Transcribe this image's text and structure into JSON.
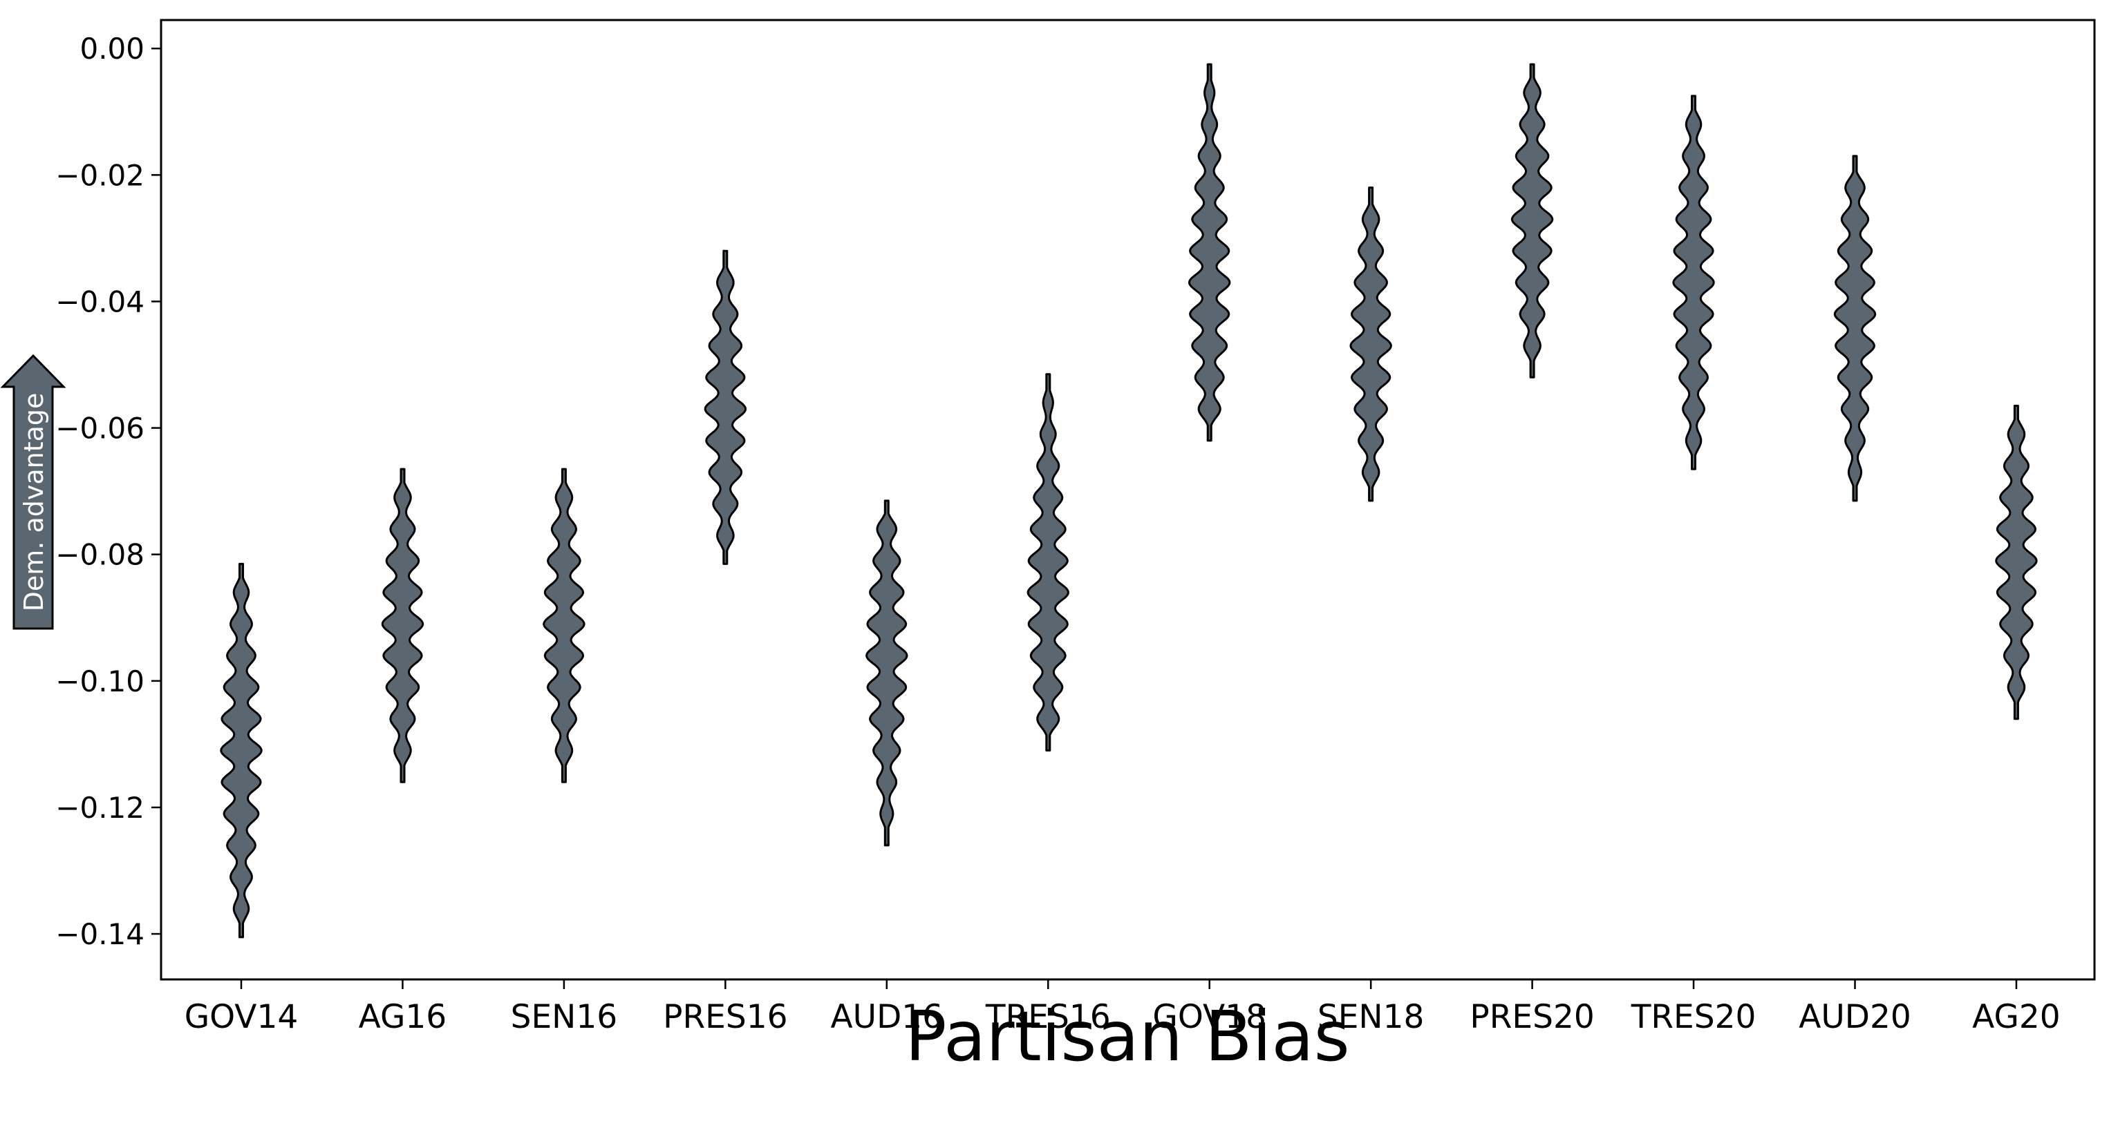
{
  "chart_data": {
    "type": "violin",
    "title": "",
    "xlabel": "Partisan Bias",
    "ylabel": "",
    "ylim": [
      -0.1472,
      0.0045
    ],
    "yticks": [
      "0.00",
      "−0.02",
      "−0.04",
      "−0.06",
      "−0.08",
      "−0.10",
      "−0.12",
      "−0.14"
    ],
    "ytick_values": [
      0.0,
      -0.02,
      -0.04,
      -0.06,
      -0.08,
      -0.1,
      -0.12,
      -0.14
    ],
    "grid": false,
    "fill_color": "#5b6770",
    "edge_color": "#000000",
    "annotation": {
      "text": "Dem. advantage",
      "icon": "up-arrow-icon",
      "fill_color": "#5b6770"
    },
    "categories": [
      "GOV14",
      "AG16",
      "SEN16",
      "PRES16",
      "AUD16",
      "TRES16",
      "GOV18",
      "SEN18",
      "PRES20",
      "TRES20",
      "AUD20",
      "AG20"
    ],
    "violins": [
      {
        "category": "GOV14",
        "min": -0.1405,
        "max": -0.0815,
        "center": -0.111,
        "modes": [
          -0.086,
          -0.091,
          -0.096,
          -0.101,
          -0.106,
          -0.111,
          -0.116,
          -0.121,
          -0.126,
          -0.131,
          -0.136
        ],
        "max_width": 0.1
      },
      {
        "category": "AG16",
        "min": -0.116,
        "max": -0.0665,
        "center": -0.091,
        "modes": [
          -0.071,
          -0.076,
          -0.081,
          -0.086,
          -0.091,
          -0.096,
          -0.101,
          -0.106,
          -0.111
        ],
        "max_width": 0.1
      },
      {
        "category": "SEN16",
        "min": -0.116,
        "max": -0.0665,
        "center": -0.091,
        "modes": [
          -0.071,
          -0.076,
          -0.081,
          -0.086,
          -0.091,
          -0.096,
          -0.101,
          -0.106,
          -0.111
        ],
        "max_width": 0.1
      },
      {
        "category": "PRES16",
        "min": -0.0815,
        "max": -0.032,
        "center": -0.057,
        "modes": [
          -0.037,
          -0.042,
          -0.047,
          -0.052,
          -0.057,
          -0.062,
          -0.067,
          -0.072,
          -0.077
        ],
        "max_width": 0.1
      },
      {
        "category": "AUD16",
        "min": -0.126,
        "max": -0.0715,
        "center": -0.096,
        "modes": [
          -0.076,
          -0.081,
          -0.086,
          -0.091,
          -0.096,
          -0.101,
          -0.106,
          -0.111,
          -0.116,
          -0.121
        ],
        "max_width": 0.1
      },
      {
        "category": "TRES16",
        "min": -0.111,
        "max": -0.0515,
        "center": -0.086,
        "modes": [
          -0.056,
          -0.061,
          -0.066,
          -0.071,
          -0.076,
          -0.081,
          -0.086,
          -0.091,
          -0.096,
          -0.101,
          -0.106
        ],
        "max_width": 0.1
      },
      {
        "category": "GOV18",
        "min": -0.062,
        "max": -0.0025,
        "center": -0.037,
        "modes": [
          -0.007,
          -0.012,
          -0.017,
          -0.022,
          -0.027,
          -0.032,
          -0.037,
          -0.042,
          -0.047,
          -0.052,
          -0.057
        ],
        "max_width": 0.1
      },
      {
        "category": "SEN18",
        "min": -0.0715,
        "max": -0.022,
        "center": -0.047,
        "modes": [
          -0.027,
          -0.032,
          -0.037,
          -0.042,
          -0.047,
          -0.052,
          -0.057,
          -0.062,
          -0.067
        ],
        "max_width": 0.1
      },
      {
        "category": "PRES20",
        "min": -0.052,
        "max": -0.0025,
        "center": -0.027,
        "modes": [
          -0.007,
          -0.012,
          -0.017,
          -0.022,
          -0.027,
          -0.032,
          -0.037,
          -0.042,
          -0.047
        ],
        "max_width": 0.1
      },
      {
        "category": "TRES20",
        "min": -0.0665,
        "max": -0.0075,
        "center": -0.037,
        "modes": [
          -0.012,
          -0.017,
          -0.022,
          -0.027,
          -0.032,
          -0.037,
          -0.042,
          -0.047,
          -0.052,
          -0.057,
          -0.062
        ],
        "max_width": 0.1
      },
      {
        "category": "AUD20",
        "min": -0.0715,
        "max": -0.017,
        "center": -0.042,
        "modes": [
          -0.022,
          -0.027,
          -0.032,
          -0.037,
          -0.042,
          -0.047,
          -0.052,
          -0.057,
          -0.062,
          -0.067
        ],
        "max_width": 0.1
      },
      {
        "category": "AG20",
        "min": -0.106,
        "max": -0.0565,
        "center": -0.081,
        "modes": [
          -0.061,
          -0.066,
          -0.071,
          -0.076,
          -0.081,
          -0.086,
          -0.091,
          -0.096,
          -0.101
        ],
        "max_width": 0.1
      }
    ]
  }
}
